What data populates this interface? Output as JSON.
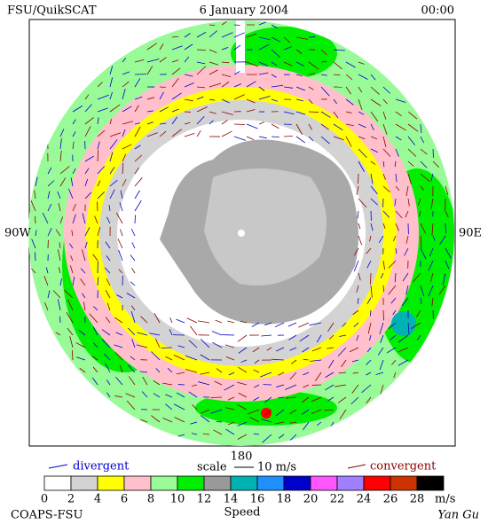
{
  "header": {
    "title": "FSU/QuikSCAT",
    "date": "6 January 2004",
    "time": "00:00"
  },
  "map": {
    "west": "90W",
    "east": "90E",
    "bottom": "180"
  },
  "legend": {
    "divergent": "divergent",
    "scale": "scale",
    "scale_value": "10 m/s",
    "convergent": "convergent"
  },
  "colorbar": {
    "ticks": [
      0,
      2,
      4,
      6,
      8,
      10,
      12,
      14,
      16,
      18,
      20,
      22,
      24,
      26,
      28
    ],
    "colors": [
      "#ffffff",
      "#d3d3d3",
      "#ffff00",
      "#ffc0cb",
      "#98fb98",
      "#00ee00",
      "#999999",
      "#00b2b2",
      "#1e90ff",
      "#0000cd",
      "#ff55ff",
      "#a080ff",
      "#ff0000",
      "#cc3300",
      "#000000"
    ],
    "unit": "m/s",
    "title": "Speed"
  },
  "footer": {
    "credit": "COAPS-FSU",
    "author": "Yan Gu"
  }
}
